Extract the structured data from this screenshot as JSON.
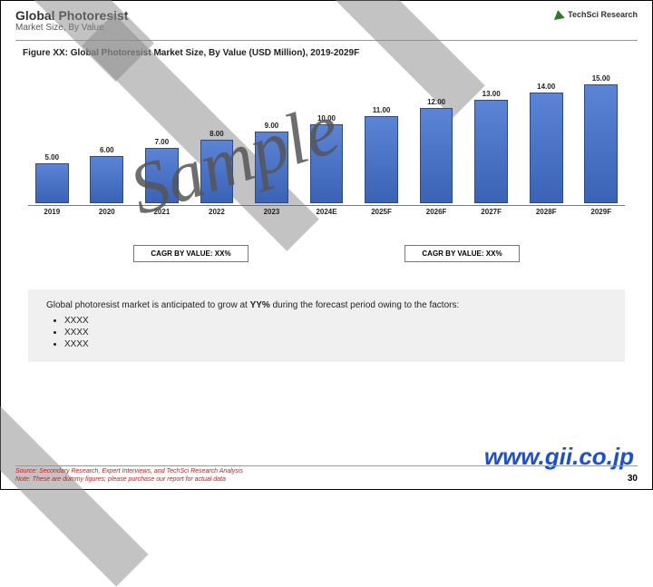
{
  "header": {
    "title": "Global Photoresist",
    "subtitle": "Market Size, By Value"
  },
  "logo": {
    "text": "TechSci Research"
  },
  "figure_title": "Figure XX: Global Photoresist Market Size, By Value (USD Million), 2019-2029F",
  "chart": {
    "type": "bar",
    "max": 16,
    "bar_color_top": "#5b84d6",
    "bar_color_bottom": "#3a63b5",
    "bar_border": "#2a4a8a",
    "categories": [
      "2019",
      "2020",
      "2021",
      "2022",
      "2023",
      "2024E",
      "2025F",
      "2026F",
      "2027F",
      "2028F",
      "2029F"
    ],
    "values": [
      5.0,
      6.0,
      7.0,
      8.0,
      9.0,
      10.0,
      11.0,
      12.0,
      13.0,
      14.0,
      15.0
    ],
    "labels": [
      "5.00",
      "6.00",
      "7.00",
      "8.00",
      "9.00",
      "10.00",
      "11.00",
      "12.00",
      "13.00",
      "14.00",
      "15.00"
    ]
  },
  "cagr": {
    "left": "CAGR BY VALUE: XX%",
    "right": "CAGR BY VALUE: XX%"
  },
  "description": {
    "intro_a": "Global photoresist market is anticipated to grow at ",
    "intro_bold": "YY%",
    "intro_b": " during the forecast period owing to the factors:",
    "bullets": [
      "XXXX",
      "XXXX",
      "XXXX"
    ]
  },
  "watermark": {
    "sample": "Sample",
    "url": "www.gii.co.jp"
  },
  "footer": {
    "source_line1": "Source: Secondary Research, Expert Interviews, and TechSci Research Analysis",
    "source_line2": "Note: These are dummy figures; please purchase our report for actual data",
    "page": "30"
  }
}
